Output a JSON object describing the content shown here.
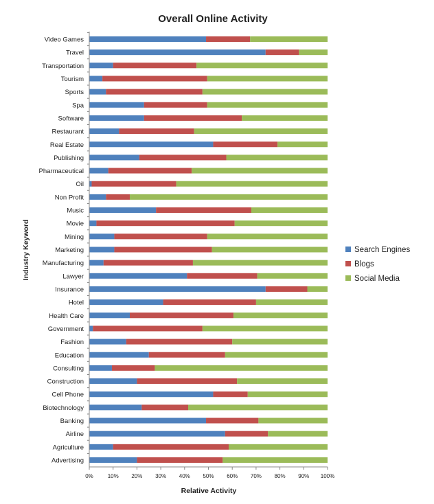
{
  "chart_data": {
    "type": "bar",
    "stacked": "percent",
    "orientation": "horizontal",
    "title": "Overall Online Activity",
    "xlabel": "Relative Activity",
    "ylabel": "Industry Keyword",
    "xlim": [
      0,
      100
    ],
    "x_ticks": [
      "0%",
      "10%",
      "20%",
      "30%",
      "40%",
      "50%",
      "60%",
      "70%",
      "80%",
      "90%",
      "100%"
    ],
    "grid": false,
    "legend_position": "right",
    "categories": [
      "Video Games",
      "Travel",
      "Transportation",
      "Tourism",
      "Sports",
      "Spa",
      "Software",
      "Restaurant",
      "Real Estate",
      "Publishing",
      "Pharmaceutical",
      "Oil",
      "Non Profit",
      "Music",
      "Movie",
      "Mining",
      "Marketing",
      "Manufacturing",
      "Lawyer",
      "Insurance",
      "Hotel",
      "Health Care",
      "Government",
      "Fashion",
      "Education",
      "Consulting",
      "Construction",
      "Cell Phone",
      "Biotechnology",
      "Banking",
      "Airline",
      "Agriculture",
      "Advertising"
    ],
    "series": [
      {
        "name": "Search Engines",
        "color": "#4f81bd",
        "values": [
          49,
          74,
          10,
          5.5,
          7,
          23,
          23,
          12.5,
          52,
          21,
          8,
          1,
          7,
          28,
          3,
          10.5,
          10.5,
          6,
          41,
          74,
          31,
          17,
          1.5,
          15.5,
          25,
          9.5,
          20,
          52,
          22,
          49,
          57,
          10,
          20
        ]
      },
      {
        "name": "Blogs",
        "color": "#c0504d",
        "values": [
          18.5,
          14,
          35,
          44,
          40.5,
          26.5,
          41,
          31.5,
          27,
          36.5,
          35,
          35.5,
          10,
          40,
          58,
          39,
          41,
          37.5,
          29.5,
          17.5,
          39,
          43.5,
          46,
          44.5,
          32,
          18,
          42,
          14.5,
          19.5,
          22,
          18,
          48.5,
          36
        ]
      },
      {
        "name": "Social Media",
        "color": "#9bbb59",
        "values": [
          32.5,
          12,
          55,
          50.5,
          52.5,
          50.5,
          36,
          56,
          21,
          42.5,
          57,
          63.5,
          83,
          32,
          39,
          50.5,
          48.5,
          56.5,
          29.5,
          8.5,
          30,
          39.5,
          52.5,
          40,
          43,
          72.5,
          38,
          33.5,
          58.5,
          29,
          25,
          41.5,
          44
        ]
      }
    ]
  }
}
